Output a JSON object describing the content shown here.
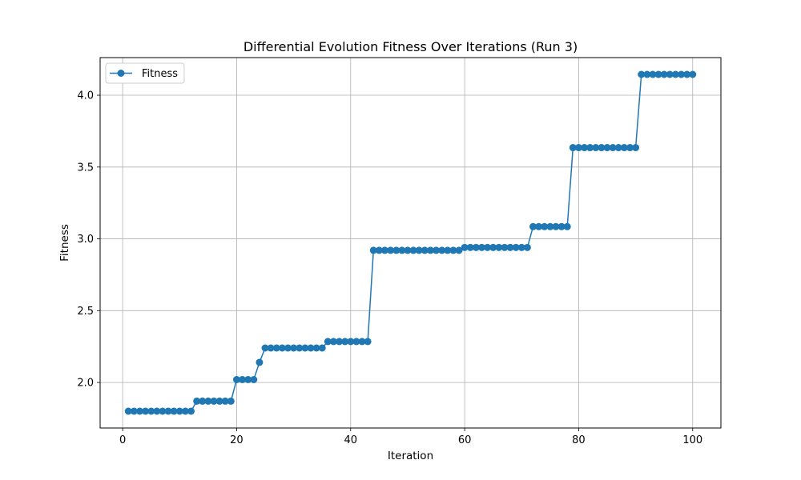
{
  "chart_data": {
    "type": "line",
    "title": "Differential Evolution Fitness Over Iterations (Run 3)",
    "xlabel": "Iteration",
    "ylabel": "Fitness",
    "xlim": [
      -3.95,
      104.95
    ],
    "ylim": [
      1.683,
      4.262
    ],
    "xticks": [
      0,
      20,
      40,
      60,
      80,
      100
    ],
    "yticks": [
      2.0,
      2.5,
      3.0,
      3.5,
      4.0
    ],
    "xtick_labels": [
      "0",
      "20",
      "40",
      "60",
      "80",
      "100"
    ],
    "ytick_labels": [
      "2.0",
      "2.5",
      "3.0",
      "3.5",
      "4.0"
    ],
    "grid": true,
    "legend_position": "upper-left",
    "series": [
      {
        "name": "Fitness",
        "color": "#1f77b4",
        "marker": "circle",
        "x": [
          1,
          2,
          3,
          4,
          5,
          6,
          7,
          8,
          9,
          10,
          11,
          12,
          13,
          14,
          15,
          16,
          17,
          18,
          19,
          20,
          21,
          22,
          23,
          24,
          25,
          26,
          27,
          28,
          29,
          30,
          31,
          32,
          33,
          34,
          35,
          36,
          37,
          38,
          39,
          40,
          41,
          42,
          43,
          44,
          45,
          46,
          47,
          48,
          49,
          50,
          51,
          52,
          53,
          54,
          55,
          56,
          57,
          58,
          59,
          60,
          61,
          62,
          63,
          64,
          65,
          66,
          67,
          68,
          69,
          70,
          71,
          72,
          73,
          74,
          75,
          76,
          77,
          78,
          79,
          80,
          81,
          82,
          83,
          84,
          85,
          86,
          87,
          88,
          89,
          90,
          91,
          92,
          93,
          94,
          95,
          96,
          97,
          98,
          99,
          100
        ],
        "y": [
          1.8,
          1.8,
          1.8,
          1.8,
          1.8,
          1.8,
          1.8,
          1.8,
          1.8,
          1.8,
          1.8,
          1.8,
          1.87,
          1.87,
          1.87,
          1.87,
          1.87,
          1.87,
          1.87,
          2.02,
          2.02,
          2.02,
          2.02,
          2.14,
          2.24,
          2.24,
          2.24,
          2.24,
          2.24,
          2.24,
          2.24,
          2.24,
          2.24,
          2.24,
          2.24,
          2.285,
          2.285,
          2.285,
          2.285,
          2.285,
          2.285,
          2.285,
          2.285,
          2.92,
          2.92,
          2.92,
          2.92,
          2.92,
          2.92,
          2.92,
          2.92,
          2.92,
          2.92,
          2.92,
          2.92,
          2.92,
          2.92,
          2.92,
          2.92,
          2.94,
          2.94,
          2.94,
          2.94,
          2.94,
          2.94,
          2.94,
          2.94,
          2.94,
          2.94,
          2.94,
          2.94,
          3.085,
          3.085,
          3.085,
          3.085,
          3.085,
          3.085,
          3.085,
          3.635,
          3.635,
          3.635,
          3.635,
          3.635,
          3.635,
          3.635,
          3.635,
          3.635,
          3.635,
          3.635,
          3.635,
          4.145,
          4.145,
          4.145,
          4.145,
          4.145,
          4.145,
          4.145,
          4.145,
          4.145,
          4.145
        ]
      }
    ]
  }
}
